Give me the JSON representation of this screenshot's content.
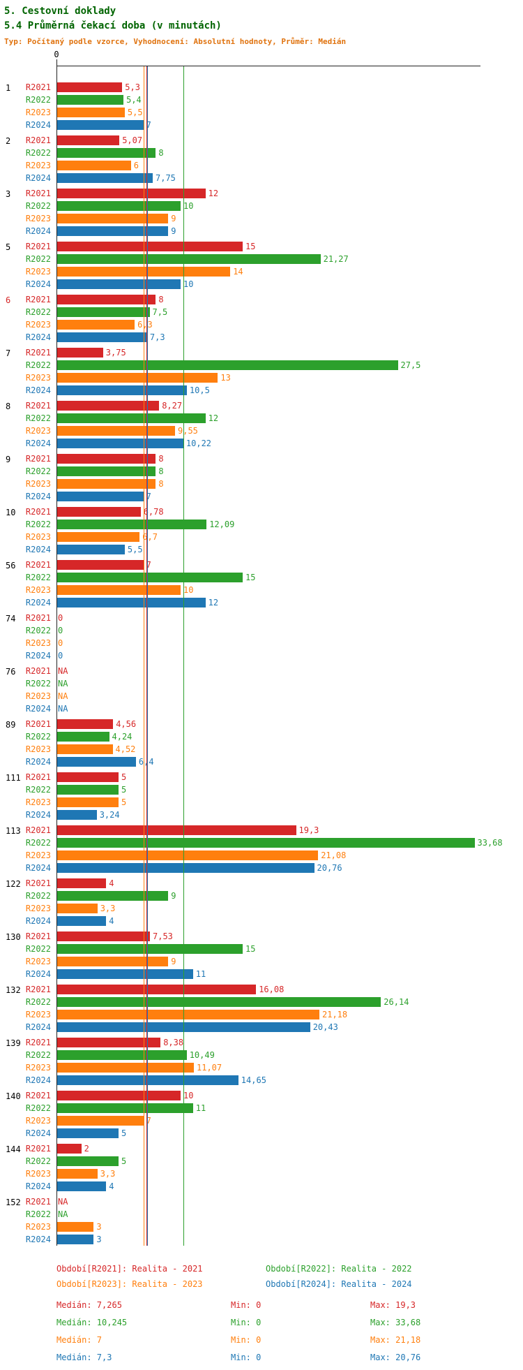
{
  "header": {
    "title1": "5. Cestovní doklady",
    "title2": "5.4 Průměrná čekací doba (v minutách)",
    "subtitle": "Typ: Počítaný podle vzorce, Vyhodnocení: Absolutní hodnoty, Průměr: Medián"
  },
  "chart_data": {
    "type": "bar",
    "orientation": "horizontal",
    "title": "5.4 Průměrná čekací doba (v minutách)",
    "x_origin_label": "0",
    "x_range": [
      0,
      34
    ],
    "grid": false,
    "legend_position": "bottom",
    "series": [
      {
        "name": "R2021",
        "color": "#d62728",
        "median": 7.265,
        "min": 0,
        "max": 19.3
      },
      {
        "name": "R2022",
        "color": "#2ca02c",
        "median": 10.245,
        "min": 0,
        "max": 33.68
      },
      {
        "name": "R2023",
        "color": "#ff7f0e",
        "median": 7,
        "min": 0,
        "max": 21.18
      },
      {
        "name": "R2024",
        "color": "#1f77b4",
        "median": 7.3,
        "min": 0,
        "max": 20.76
      }
    ],
    "groups": [
      {
        "office": "1",
        "highlight": false,
        "values": [
          5.3,
          5.4,
          5.5,
          7
        ],
        "labels": [
          "5,3",
          "5,4",
          "5,5",
          "7"
        ]
      },
      {
        "office": "2",
        "highlight": false,
        "values": [
          5.07,
          8,
          6,
          7.75
        ],
        "labels": [
          "5,07",
          "8",
          "6",
          "7,75"
        ]
      },
      {
        "office": "3",
        "highlight": false,
        "values": [
          12,
          10,
          9,
          9
        ],
        "labels": [
          "12",
          "10",
          "9",
          "9"
        ]
      },
      {
        "office": "5",
        "highlight": false,
        "values": [
          15,
          21.27,
          14,
          10
        ],
        "labels": [
          "15",
          "21,27",
          "14",
          "10"
        ]
      },
      {
        "office": "6",
        "highlight": true,
        "values": [
          8,
          7.5,
          6.3,
          7.3
        ],
        "labels": [
          "8",
          "7,5",
          "6,3",
          "7,3"
        ]
      },
      {
        "office": "7",
        "highlight": false,
        "values": [
          3.75,
          27.5,
          13,
          10.5
        ],
        "labels": [
          "3,75",
          "27,5",
          "13",
          "10,5"
        ]
      },
      {
        "office": "8",
        "highlight": false,
        "values": [
          8.27,
          12,
          9.55,
          10.22
        ],
        "labels": [
          "8,27",
          "12",
          "9,55",
          "10,22"
        ]
      },
      {
        "office": "9",
        "highlight": false,
        "values": [
          8,
          8,
          8,
          7
        ],
        "labels": [
          "8",
          "8",
          "8",
          "7"
        ]
      },
      {
        "office": "10",
        "highlight": false,
        "values": [
          6.78,
          12.09,
          6.7,
          5.5
        ],
        "labels": [
          "6,78",
          "12,09",
          "6,7",
          "5,5"
        ]
      },
      {
        "office": "56",
        "highlight": false,
        "values": [
          7,
          15,
          10,
          12
        ],
        "labels": [
          "7",
          "15",
          "10",
          "12"
        ]
      },
      {
        "office": "74",
        "highlight": false,
        "values": [
          0,
          0,
          0,
          0
        ],
        "labels": [
          "0",
          "0",
          "0",
          "0"
        ]
      },
      {
        "office": "76",
        "highlight": false,
        "values": [
          null,
          null,
          null,
          null
        ],
        "labels": [
          "NA",
          "NA",
          "NA",
          "NA"
        ]
      },
      {
        "office": "89",
        "highlight": false,
        "values": [
          4.56,
          4.24,
          4.52,
          6.4
        ],
        "labels": [
          "4,56",
          "4,24",
          "4,52",
          "6,4"
        ]
      },
      {
        "office": "111",
        "highlight": false,
        "values": [
          5,
          5,
          5,
          3.24
        ],
        "labels": [
          "5",
          "5",
          "5",
          "3,24"
        ]
      },
      {
        "office": "113",
        "highlight": false,
        "values": [
          19.3,
          33.68,
          21.08,
          20.76
        ],
        "labels": [
          "19,3",
          "33,68",
          "21,08",
          "20,76"
        ]
      },
      {
        "office": "122",
        "highlight": false,
        "values": [
          4,
          9,
          3.3,
          4
        ],
        "labels": [
          "4",
          "9",
          "3,3",
          "4"
        ]
      },
      {
        "office": "130",
        "highlight": false,
        "values": [
          7.53,
          15,
          9,
          11
        ],
        "labels": [
          "7,53",
          "15",
          "9",
          "11"
        ]
      },
      {
        "office": "132",
        "highlight": false,
        "values": [
          16.08,
          26.14,
          21.18,
          20.43
        ],
        "labels": [
          "16,08",
          "26,14",
          "21,18",
          "20,43"
        ]
      },
      {
        "office": "139",
        "highlight": false,
        "values": [
          8.38,
          10.49,
          11.07,
          14.65
        ],
        "labels": [
          "8,38",
          "10,49",
          "11,07",
          "14,65"
        ]
      },
      {
        "office": "140",
        "highlight": false,
        "values": [
          10,
          11,
          7,
          5
        ],
        "labels": [
          "10",
          "11",
          "7",
          "5"
        ]
      },
      {
        "office": "144",
        "highlight": false,
        "values": [
          2,
          5,
          3.3,
          4
        ],
        "labels": [
          "2",
          "5",
          "3,3",
          "4"
        ]
      },
      {
        "office": "152",
        "highlight": false,
        "values": [
          null,
          null,
          3,
          3
        ],
        "labels": [
          "NA",
          "NA",
          "3",
          "3"
        ]
      }
    ]
  },
  "legend": [
    {
      "text": "Období[R2021]: Realita - 2021",
      "color": "#d62728",
      "row": 0,
      "col": 0
    },
    {
      "text": "Období[R2022]: Realita - 2022",
      "color": "#2ca02c",
      "row": 0,
      "col": 1
    },
    {
      "text": "Období[R2023]: Realita - 2023",
      "color": "#ff7f0e",
      "row": 1,
      "col": 0
    },
    {
      "text": "Období[R2024]: Realita - 2024",
      "color": "#1f77b4",
      "row": 1,
      "col": 1
    }
  ],
  "stats": [
    {
      "median": "Medián: 7,265",
      "min": "Min: 0",
      "max": "Max: 19,3",
      "color": "#d62728"
    },
    {
      "median": "Medián: 10,245",
      "min": "Min: 0",
      "max": "Max: 33,68",
      "color": "#2ca02c"
    },
    {
      "median": "Medián: 7",
      "min": "Min: 0",
      "max": "Max: 21,18",
      "color": "#ff7f0e"
    },
    {
      "median": "Medián: 7,3",
      "min": "Min: 0",
      "max": "Max: 20,76",
      "color": "#1f77b4"
    }
  ]
}
